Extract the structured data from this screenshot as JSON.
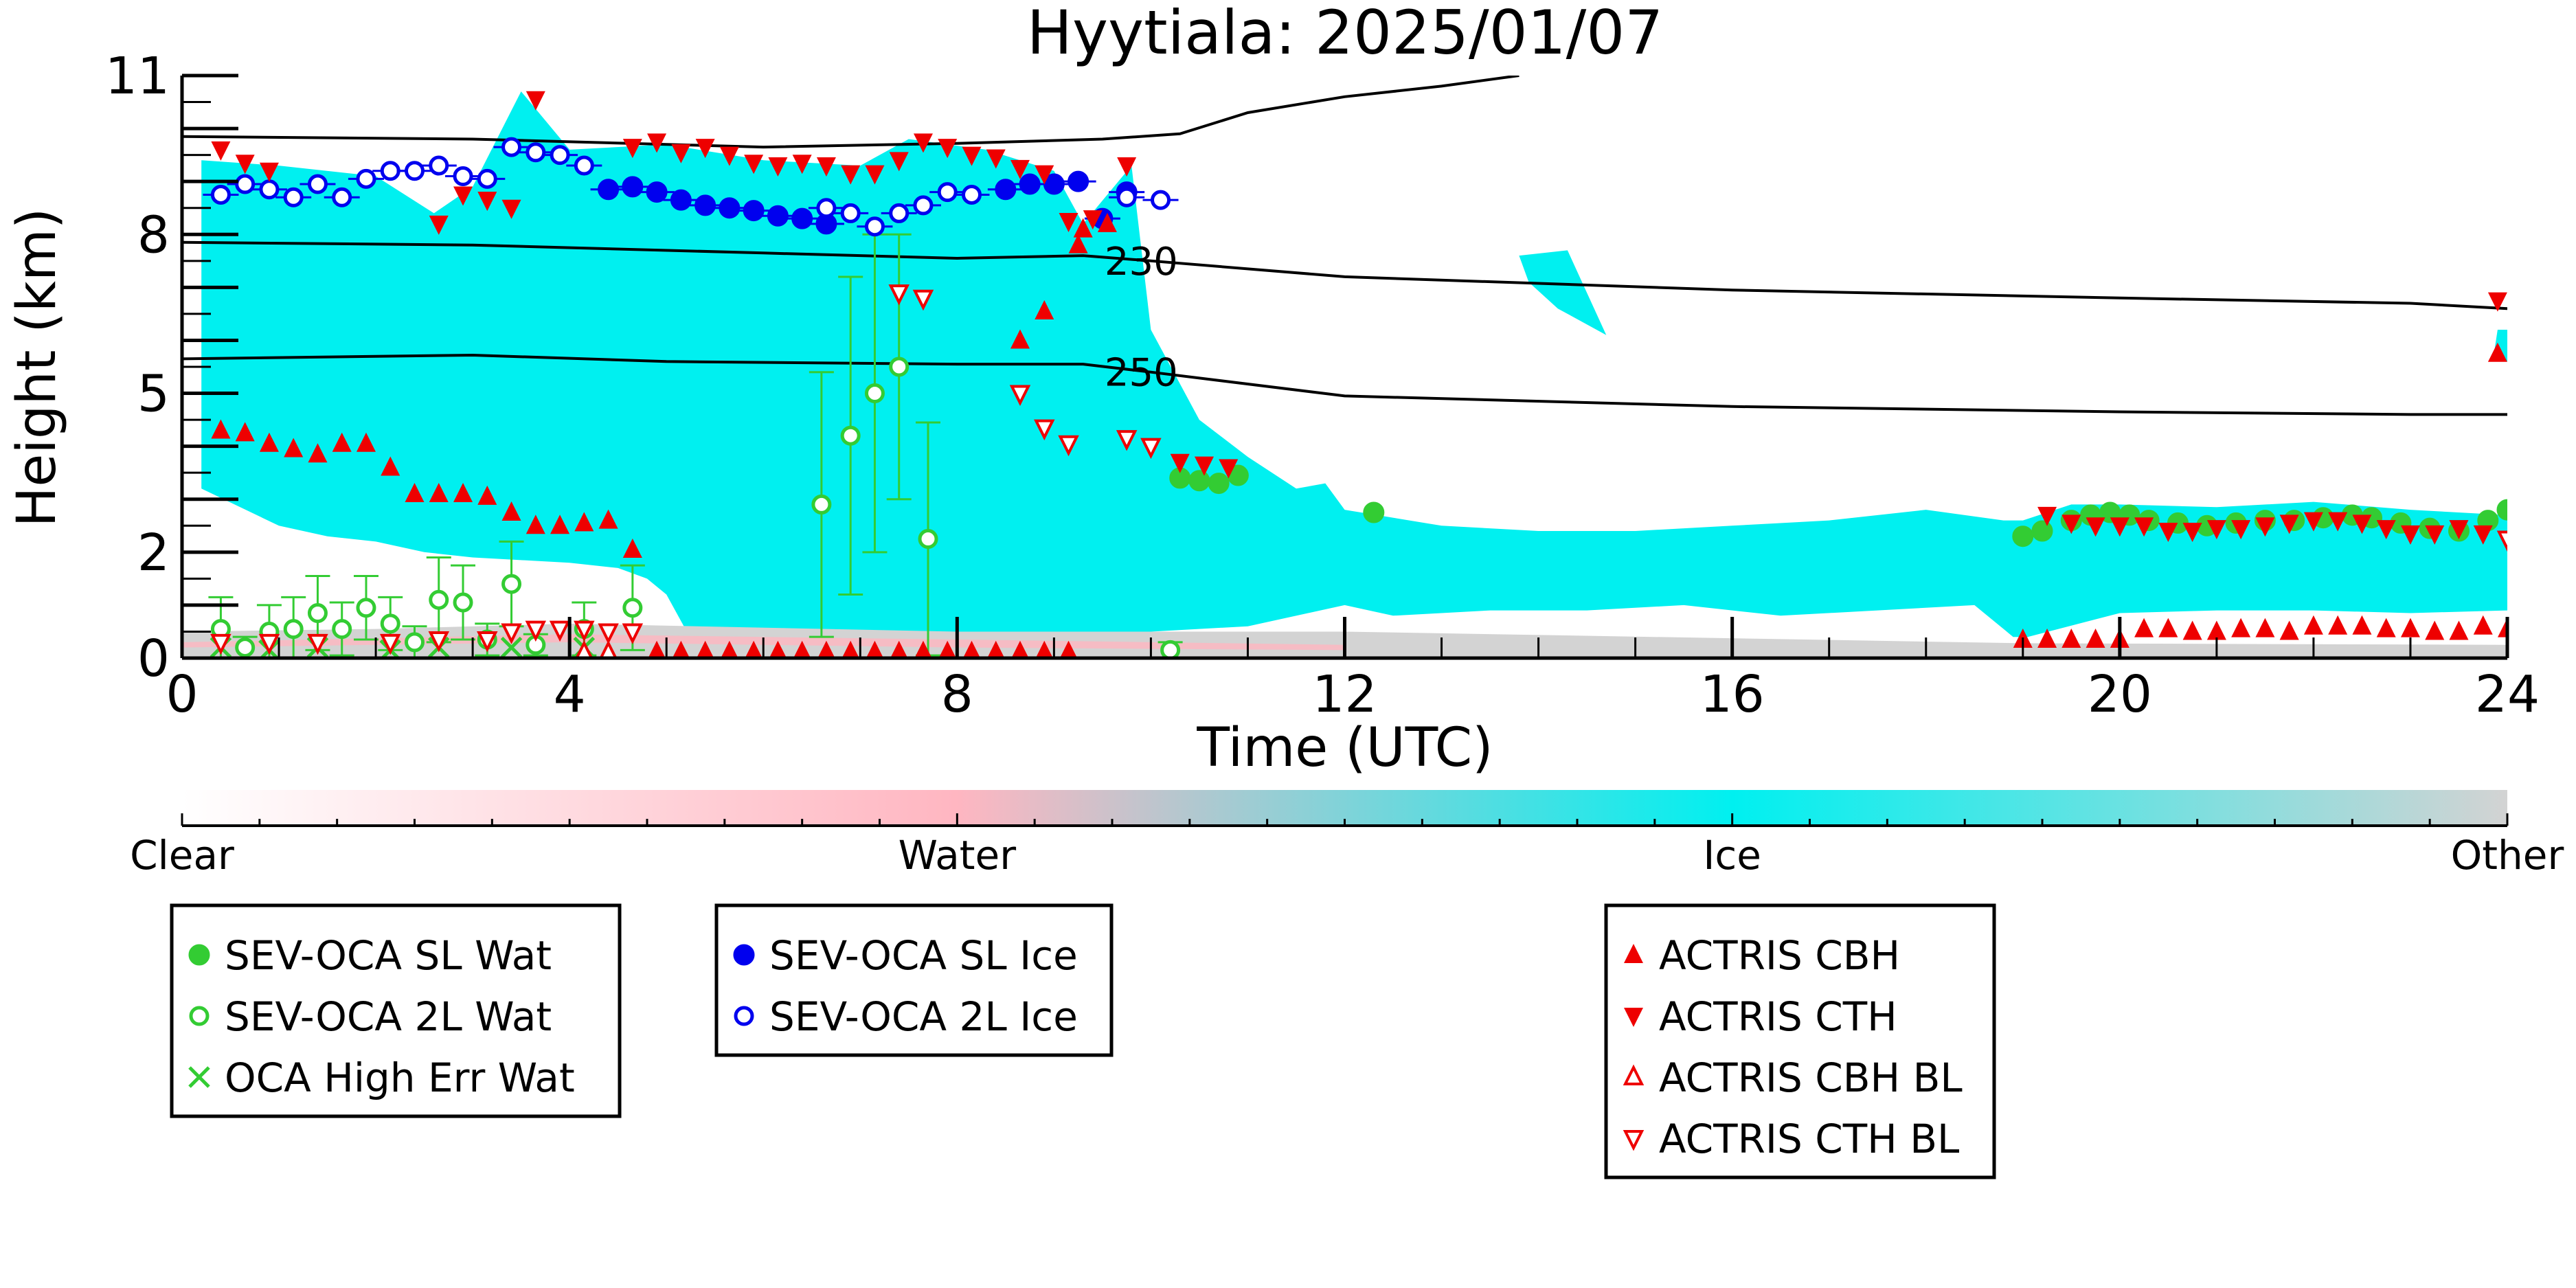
{
  "chart_data": {
    "type": "scatter",
    "title": "Hyytiala: 2025/01/07",
    "xlabel": "Time (UTC)",
    "ylabel": "Height (km)",
    "xlim": [
      0,
      24
    ],
    "ylim": [
      0,
      11
    ],
    "xticks": [
      0,
      4,
      8,
      12,
      16,
      20,
      24
    ],
    "yticks": [
      0,
      2,
      5,
      8,
      11
    ],
    "colorbar": {
      "labels": [
        "Clear",
        "Water",
        "Ice",
        "Other"
      ],
      "colors": [
        "#ffffff",
        "#ffb6c1",
        "#00f0f0",
        "#d3d3d3"
      ]
    },
    "contours": [
      {
        "label": "230",
        "points": [
          [
            0,
            7.85
          ],
          [
            3,
            7.8
          ],
          [
            6,
            7.65
          ],
          [
            8,
            7.55
          ],
          [
            9.3,
            7.6
          ],
          [
            10,
            7.5
          ],
          [
            12,
            7.2
          ],
          [
            16,
            6.95
          ],
          [
            20,
            6.8
          ],
          [
            23,
            6.7
          ],
          [
            24,
            6.6
          ]
        ]
      },
      {
        "label": "250",
        "points": [
          [
            0,
            5.65
          ],
          [
            3,
            5.72
          ],
          [
            5,
            5.6
          ],
          [
            8,
            5.55
          ],
          [
            9.3,
            5.55
          ],
          [
            10,
            5.4
          ],
          [
            12,
            4.95
          ],
          [
            16,
            4.75
          ],
          [
            20,
            4.65
          ],
          [
            23,
            4.6
          ],
          [
            24,
            4.6
          ]
        ]
      },
      {
        "label": "",
        "points": [
          [
            0,
            9.85
          ],
          [
            3,
            9.8
          ],
          [
            6,
            9.65
          ],
          [
            8,
            9.72
          ],
          [
            9.5,
            9.8
          ],
          [
            10.3,
            9.9
          ],
          [
            11,
            10.3
          ],
          [
            12,
            10.6
          ],
          [
            13,
            10.8
          ],
          [
            13.8,
            11.0
          ]
        ]
      }
    ],
    "series": [
      {
        "name": "SEV-OCA SL Wat",
        "marker": "filled-circle",
        "color": "#33cc33",
        "points": [
          [
            10.3,
            3.4
          ],
          [
            10.5,
            3.35
          ],
          [
            10.7,
            3.3
          ],
          [
            10.9,
            3.45
          ],
          [
            12.3,
            2.75
          ],
          [
            19,
            2.3
          ],
          [
            19.2,
            2.4
          ],
          [
            19.5,
            2.6
          ],
          [
            19.7,
            2.7
          ],
          [
            19.9,
            2.75
          ],
          [
            20.1,
            2.7
          ],
          [
            20.3,
            2.6
          ],
          [
            20.6,
            2.55
          ],
          [
            20.9,
            2.5
          ],
          [
            21.2,
            2.55
          ],
          [
            21.5,
            2.6
          ],
          [
            21.8,
            2.6
          ],
          [
            22.1,
            2.65
          ],
          [
            22.4,
            2.7
          ],
          [
            22.6,
            2.65
          ],
          [
            22.9,
            2.55
          ],
          [
            23.2,
            2.45
          ],
          [
            23.5,
            2.4
          ],
          [
            23.8,
            2.6
          ],
          [
            24,
            2.8
          ]
        ]
      },
      {
        "name": "SEV-OCA 2L Wat",
        "marker": "open-circle",
        "color": "#33cc33",
        "points": [
          [
            0.4,
            0.55
          ],
          [
            0.65,
            0.2
          ],
          [
            0.9,
            0.5
          ],
          [
            1.15,
            0.55
          ],
          [
            1.4,
            0.85
          ],
          [
            1.65,
            0.55
          ],
          [
            1.9,
            0.95
          ],
          [
            2.15,
            0.65
          ],
          [
            2.4,
            0.3
          ],
          [
            2.65,
            1.1
          ],
          [
            2.9,
            1.05
          ],
          [
            3.15,
            0.35
          ],
          [
            3.4,
            1.4
          ],
          [
            3.65,
            0.25
          ],
          [
            4.15,
            0.55
          ],
          [
            4.65,
            0.95
          ],
          [
            6.6,
            2.9
          ],
          [
            6.9,
            4.2
          ],
          [
            7.15,
            5.0
          ],
          [
            7.4,
            5.5
          ],
          [
            7.7,
            2.25
          ],
          [
            10.2,
            0.15
          ]
        ],
        "yerr": [
          0.6,
          0.2,
          0.5,
          0.6,
          0.7,
          0.5,
          0.6,
          0.5,
          0.3,
          0.8,
          0.7,
          0.3,
          0.8,
          0.2,
          0.5,
          0.8,
          2.5,
          3.0,
          3.0,
          2.5,
          2.2,
          0.15
        ]
      },
      {
        "name": "OCA High Err Wat",
        "marker": "x",
        "color": "#33cc33",
        "points": [
          [
            0.4,
            0.2
          ],
          [
            0.9,
            0.15
          ],
          [
            1.4,
            0.2
          ],
          [
            2.15,
            0.15
          ],
          [
            2.65,
            0.2
          ],
          [
            3.4,
            0.2
          ],
          [
            4.15,
            0.2
          ]
        ]
      },
      {
        "name": "SEV-OCA SL Ice",
        "marker": "filled-circle",
        "color": "#0000ee",
        "points": [
          [
            4.4,
            8.85
          ],
          [
            4.65,
            8.9
          ],
          [
            4.9,
            8.8
          ],
          [
            5.15,
            8.65
          ],
          [
            5.4,
            8.55
          ],
          [
            5.65,
            8.5
          ],
          [
            5.9,
            8.45
          ],
          [
            6.15,
            8.35
          ],
          [
            6.4,
            8.3
          ],
          [
            6.65,
            8.2
          ],
          [
            8.5,
            8.85
          ],
          [
            8.75,
            8.95
          ],
          [
            9.0,
            8.95
          ],
          [
            9.25,
            9.0
          ],
          [
            9.5,
            8.3
          ],
          [
            9.75,
            8.8
          ]
        ]
      },
      {
        "name": "SEV-OCA 2L Ice",
        "marker": "open-circle",
        "color": "#0000ee",
        "points": [
          [
            0.4,
            8.75
          ],
          [
            0.65,
            8.95
          ],
          [
            0.9,
            8.85
          ],
          [
            1.15,
            8.7
          ],
          [
            1.4,
            8.95
          ],
          [
            1.65,
            8.7
          ],
          [
            1.9,
            9.05
          ],
          [
            2.15,
            9.2
          ],
          [
            2.4,
            9.2
          ],
          [
            2.65,
            9.3
          ],
          [
            2.9,
            9.1
          ],
          [
            3.15,
            9.05
          ],
          [
            3.4,
            9.65
          ],
          [
            3.65,
            9.55
          ],
          [
            3.9,
            9.5
          ],
          [
            4.15,
            9.3
          ],
          [
            6.65,
            8.5
          ],
          [
            6.9,
            8.4
          ],
          [
            7.15,
            8.15
          ],
          [
            7.4,
            8.4
          ],
          [
            7.65,
            8.55
          ],
          [
            7.9,
            8.8
          ],
          [
            8.15,
            8.75
          ],
          [
            9.75,
            8.7
          ],
          [
            10.1,
            8.65
          ]
        ]
      },
      {
        "name": "ACTRIS CBH",
        "marker": "triangle-up",
        "color": "#ee0000",
        "points": [
          [
            0.4,
            4.3
          ],
          [
            0.65,
            4.25
          ],
          [
            0.9,
            4.05
          ],
          [
            1.15,
            3.95
          ],
          [
            1.4,
            3.85
          ],
          [
            1.65,
            4.05
          ],
          [
            1.9,
            4.05
          ],
          [
            2.15,
            3.6
          ],
          [
            2.4,
            3.1
          ],
          [
            2.65,
            3.1
          ],
          [
            2.9,
            3.1
          ],
          [
            3.15,
            3.05
          ],
          [
            3.4,
            2.75
          ],
          [
            3.65,
            2.5
          ],
          [
            3.9,
            2.5
          ],
          [
            4.15,
            2.55
          ],
          [
            4.4,
            2.6
          ],
          [
            4.65,
            2.05
          ],
          [
            4.9,
            0.12
          ],
          [
            5.15,
            0.12
          ],
          [
            5.4,
            0.12
          ],
          [
            5.65,
            0.12
          ],
          [
            5.9,
            0.12
          ],
          [
            6.15,
            0.12
          ],
          [
            6.4,
            0.12
          ],
          [
            6.65,
            0.12
          ],
          [
            6.9,
            0.12
          ],
          [
            7.15,
            0.12
          ],
          [
            7.4,
            0.12
          ],
          [
            7.65,
            0.12
          ],
          [
            7.9,
            0.12
          ],
          [
            8.15,
            0.12
          ],
          [
            8.4,
            0.12
          ],
          [
            8.65,
            0.12
          ],
          [
            8.9,
            0.12
          ],
          [
            9.15,
            0.12
          ],
          [
            8.65,
            6.0
          ],
          [
            9.25,
            7.8
          ],
          [
            9.3,
            8.1
          ],
          [
            9.55,
            8.2
          ],
          [
            8.9,
            6.55
          ],
          [
            19,
            0.35
          ],
          [
            19.25,
            0.35
          ],
          [
            19.5,
            0.35
          ],
          [
            19.75,
            0.35
          ],
          [
            20.0,
            0.35
          ],
          [
            20.25,
            0.55
          ],
          [
            20.5,
            0.55
          ],
          [
            20.75,
            0.5
          ],
          [
            21.0,
            0.5
          ],
          [
            21.25,
            0.55
          ],
          [
            21.5,
            0.55
          ],
          [
            21.75,
            0.5
          ],
          [
            22.0,
            0.6
          ],
          [
            22.25,
            0.6
          ],
          [
            22.5,
            0.6
          ],
          [
            22.75,
            0.55
          ],
          [
            23.0,
            0.55
          ],
          [
            23.25,
            0.5
          ],
          [
            23.5,
            0.5
          ],
          [
            23.75,
            0.6
          ],
          [
            24.0,
            0.55
          ],
          [
            23.9,
            5.75
          ]
        ]
      },
      {
        "name": "ACTRIS CTH",
        "marker": "triangle-down",
        "color": "#ee0000",
        "points": [
          [
            0.4,
            9.6
          ],
          [
            0.65,
            9.35
          ],
          [
            0.9,
            9.2
          ],
          [
            2.65,
            8.2
          ],
          [
            2.9,
            8.75
          ],
          [
            3.15,
            8.65
          ],
          [
            3.4,
            8.5
          ],
          [
            3.65,
            10.55
          ],
          [
            4.65,
            9.65
          ],
          [
            4.9,
            9.75
          ],
          [
            5.15,
            9.55
          ],
          [
            5.4,
            9.65
          ],
          [
            5.65,
            9.5
          ],
          [
            5.9,
            9.35
          ],
          [
            6.15,
            9.3
          ],
          [
            6.4,
            9.35
          ],
          [
            6.65,
            9.3
          ],
          [
            6.9,
            9.15
          ],
          [
            7.15,
            9.15
          ],
          [
            7.4,
            9.4
          ],
          [
            7.65,
            9.75
          ],
          [
            7.9,
            9.65
          ],
          [
            8.15,
            9.5
          ],
          [
            8.4,
            9.45
          ],
          [
            8.65,
            9.25
          ],
          [
            8.9,
            9.15
          ],
          [
            9.15,
            8.25
          ],
          [
            9.4,
            8.3
          ],
          [
            9.75,
            9.3
          ],
          [
            10.3,
            3.7
          ],
          [
            10.55,
            3.65
          ],
          [
            10.8,
            3.6
          ],
          [
            19.25,
            2.7
          ],
          [
            19.5,
            2.55
          ],
          [
            19.75,
            2.5
          ],
          [
            20.0,
            2.5
          ],
          [
            20.25,
            2.5
          ],
          [
            20.5,
            2.4
          ],
          [
            20.75,
            2.4
          ],
          [
            21.0,
            2.45
          ],
          [
            21.25,
            2.45
          ],
          [
            21.5,
            2.5
          ],
          [
            21.75,
            2.55
          ],
          [
            22.0,
            2.6
          ],
          [
            22.25,
            2.6
          ],
          [
            22.5,
            2.55
          ],
          [
            22.75,
            2.45
          ],
          [
            23.0,
            2.35
          ],
          [
            23.25,
            2.35
          ],
          [
            23.5,
            2.45
          ],
          [
            23.75,
            2.35
          ],
          [
            23.9,
            6.75
          ]
        ]
      },
      {
        "name": "ACTRIS CBH BL",
        "marker": "open-triangle-up",
        "color": "#ee0000",
        "points": [
          [
            4.15,
            0.1
          ],
          [
            4.4,
            0.1
          ]
        ]
      },
      {
        "name": "ACTRIS CTH BL",
        "marker": "open-triangle-down",
        "color": "#ee0000",
        "points": [
          [
            0.4,
            0.3
          ],
          [
            0.9,
            0.3
          ],
          [
            1.4,
            0.3
          ],
          [
            2.15,
            0.3
          ],
          [
            2.65,
            0.35
          ],
          [
            3.15,
            0.35
          ],
          [
            3.4,
            0.5
          ],
          [
            3.65,
            0.55
          ],
          [
            3.9,
            0.55
          ],
          [
            4.15,
            0.55
          ],
          [
            4.4,
            0.5
          ],
          [
            4.65,
            0.5
          ],
          [
            7.4,
            6.9
          ],
          [
            7.65,
            6.8
          ],
          [
            8.65,
            5.0
          ],
          [
            8.9,
            4.35
          ],
          [
            9.15,
            4.05
          ],
          [
            9.75,
            4.15
          ],
          [
            10.0,
            4.0
          ],
          [
            24.0,
            2.25
          ]
        ]
      }
    ]
  },
  "legend_groups": [
    [
      "SEV-OCA SL Wat",
      "SEV-OCA 2L Wat",
      "OCA High Err Wat"
    ],
    [
      "SEV-OCA SL Ice",
      "SEV-OCA 2L Ice"
    ],
    [
      "ACTRIS CBH",
      "ACTRIS CTH",
      "ACTRIS CBH BL",
      "ACTRIS CTH BL"
    ]
  ]
}
